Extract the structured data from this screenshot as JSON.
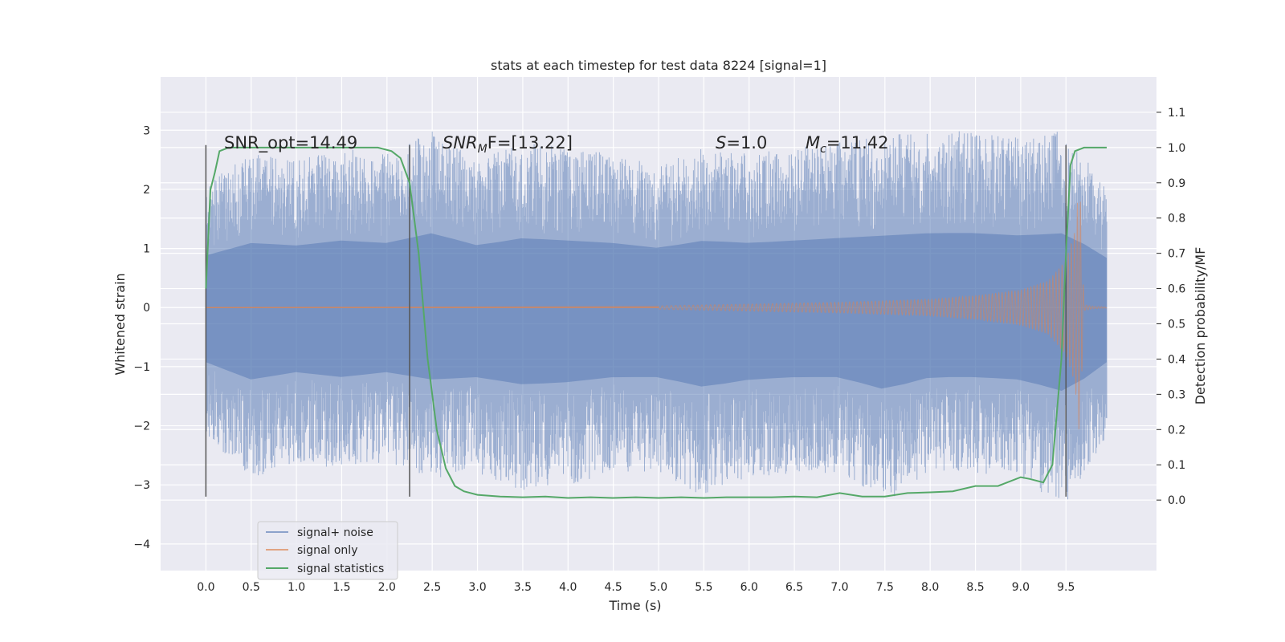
{
  "chart_data": {
    "type": "line",
    "title": "stats at each timestep for test data 8224 [signal=1]",
    "xlabel": "Time (s)",
    "ylabel": "Whitened strain",
    "y2label": "Detection probability/MF",
    "xlim": [
      -0.5,
      10.5
    ],
    "ylim": [
      -4.45,
      3.9
    ],
    "y2lim": [
      -0.2,
      1.2
    ],
    "xticks": [
      0.0,
      0.5,
      1.0,
      1.5,
      2.0,
      2.5,
      3.0,
      3.5,
      4.0,
      4.5,
      5.0,
      5.5,
      6.0,
      6.5,
      7.0,
      7.5,
      8.0,
      8.5,
      9.0,
      9.5
    ],
    "xtick_labels": [
      "0.0",
      "0.5",
      "1.0",
      "1.5",
      "2.0",
      "2.5",
      "3.0",
      "3.5",
      "4.0",
      "4.5",
      "5.0",
      "5.5",
      "6.0",
      "6.5",
      "7.0",
      "7.5",
      "8.0",
      "8.5",
      "9.0",
      "9.5"
    ],
    "yticks": [
      -4,
      -3,
      -2,
      -1,
      0,
      1,
      2,
      3
    ],
    "ytick_labels": [
      "−4",
      "−3",
      "−2",
      "−1",
      "0",
      "1",
      "2",
      "3"
    ],
    "y2ticks": [
      0.0,
      0.1,
      0.2,
      0.3,
      0.4,
      0.5,
      0.6,
      0.7,
      0.8,
      0.9,
      1.0,
      1.1
    ],
    "y2tick_labels": [
      "0.0",
      "0.1",
      "0.2",
      "0.3",
      "0.4",
      "0.5",
      "0.6",
      "0.7",
      "0.8",
      "0.9",
      "1.0",
      "1.1"
    ],
    "grid": true,
    "legend_position": "lower-left",
    "annotations": {
      "snr_opt": "SNR_opt=14.49",
      "snr_mf_italic": "SNR",
      "snr_mf_sub": "M",
      "snr_mf_rest": "F=[13.22]",
      "s_italic": "S",
      "s_rest": "=1.0",
      "mc_italic": "M",
      "mc_sub": "c",
      "mc_rest": "=11.42"
    },
    "vlines": [
      0.0,
      2.25,
      9.5
    ],
    "vline_range": [
      -3.2,
      2.75
    ],
    "noise_envelope": {
      "t": [
        0.0,
        0.5,
        1.0,
        1.5,
        2.0,
        2.5,
        3.0,
        3.5,
        4.0,
        4.5,
        5.0,
        5.5,
        6.0,
        6.5,
        7.0,
        7.5,
        8.0,
        8.5,
        9.0,
        9.5,
        9.95
      ],
      "upper": [
        2.1,
        2.6,
        2.5,
        2.7,
        2.6,
        3.0,
        2.5,
        2.8,
        2.7,
        2.6,
        2.4,
        2.7,
        2.6,
        2.7,
        2.8,
        2.9,
        3.0,
        3.0,
        2.9,
        3.0,
        2.0
      ],
      "lower": [
        -2.2,
        -2.9,
        -2.6,
        -2.8,
        -2.6,
        -2.9,
        -2.8,
        -3.1,
        -3.0,
        -2.8,
        -2.8,
        -3.2,
        -2.9,
        -2.8,
        -2.8,
        -3.3,
        -2.8,
        -2.8,
        -2.9,
        -3.4,
        -2.2
      ]
    },
    "signal_envelope": {
      "t": [
        5.0,
        6.0,
        7.0,
        8.0,
        8.5,
        9.0,
        9.3,
        9.5,
        9.6,
        9.65,
        9.7,
        9.8,
        9.95
      ],
      "amplitude": [
        0.03,
        0.06,
        0.09,
        0.14,
        0.2,
        0.3,
        0.45,
        0.8,
        1.3,
        2.2,
        0.05,
        0.02,
        0.01
      ]
    },
    "series": [
      {
        "name": "signal+ noise",
        "color": "#4c72b0"
      },
      {
        "name": "signal only",
        "color": "#dd8452"
      },
      {
        "name": "signal statistics",
        "color": "#55a868",
        "axis": "right",
        "x": [
          0.0,
          0.05,
          0.1,
          0.15,
          0.25,
          0.5,
          1.0,
          1.5,
          1.9,
          2.05,
          2.15,
          2.25,
          2.35,
          2.45,
          2.55,
          2.65,
          2.75,
          2.85,
          3.0,
          3.25,
          3.5,
          3.75,
          4.0,
          4.25,
          4.5,
          4.75,
          5.0,
          5.25,
          5.5,
          5.75,
          6.0,
          6.25,
          6.5,
          6.75,
          7.0,
          7.25,
          7.5,
          7.75,
          8.0,
          8.25,
          8.5,
          8.75,
          9.0,
          9.1,
          9.25,
          9.35,
          9.45,
          9.5,
          9.55,
          9.6,
          9.7,
          9.8,
          9.95
        ],
        "y": [
          0.6,
          0.88,
          0.93,
          0.99,
          1.0,
          1.0,
          1.0,
          1.0,
          1.0,
          0.99,
          0.97,
          0.9,
          0.7,
          0.4,
          0.2,
          0.09,
          0.04,
          0.025,
          0.015,
          0.01,
          0.008,
          0.01,
          0.006,
          0.008,
          0.006,
          0.008,
          0.006,
          0.008,
          0.006,
          0.008,
          0.008,
          0.008,
          0.01,
          0.008,
          0.02,
          0.01,
          0.01,
          0.02,
          0.022,
          0.025,
          0.04,
          0.04,
          0.065,
          0.06,
          0.05,
          0.1,
          0.4,
          0.7,
          0.95,
          0.99,
          1.0,
          1.0,
          1.0
        ]
      }
    ]
  }
}
